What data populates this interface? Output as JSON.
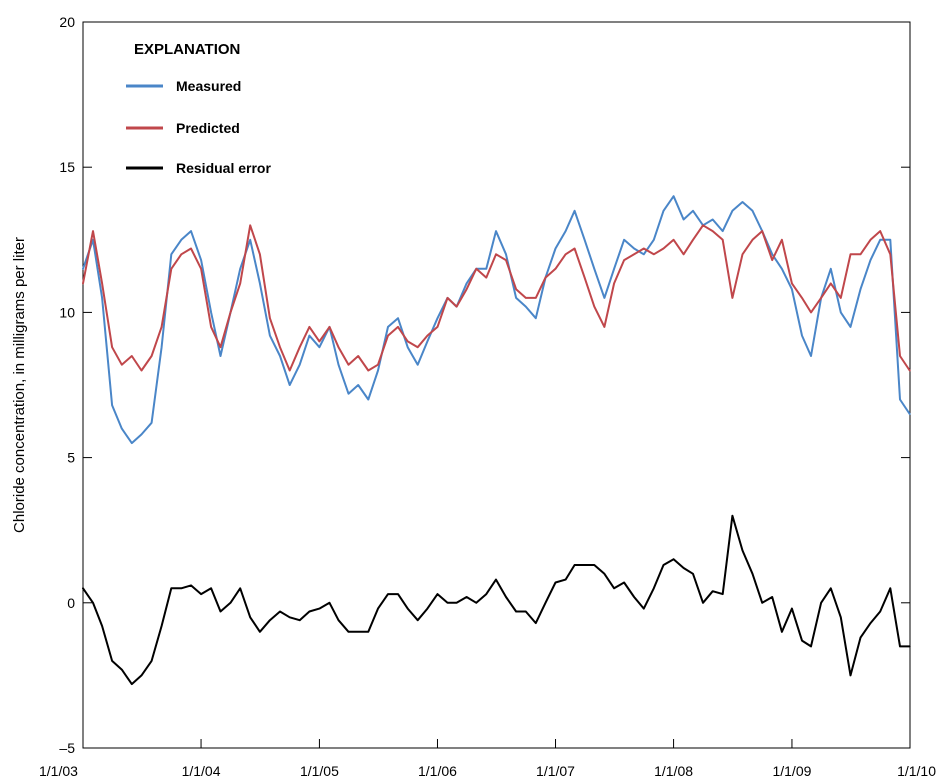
{
  "chart_data": {
    "type": "line",
    "ylabel": "Chloride concentration, in milligrams per liter",
    "ylim": [
      -5,
      20
    ],
    "yticks": [
      -5,
      0,
      5,
      10,
      15,
      20
    ],
    "ytick_labels": [
      "–5",
      "0",
      "5",
      "10",
      "15",
      "20"
    ],
    "xlim": [
      "2003-01-01",
      "2010-01-01"
    ],
    "xticks": [
      "1/1/03",
      "1/1/04",
      "1/1/05",
      "1/1/06",
      "1/1/07",
      "1/1/08",
      "1/1/09",
      "1/1/10"
    ],
    "legend": {
      "title": "EXPLANATION",
      "position": "top-left",
      "entries": [
        {
          "label": "Measured",
          "color": "#4a86c8"
        },
        {
          "label": "Predicted",
          "color": "#c0474b"
        },
        {
          "label": "Residual error",
          "color": "#000000"
        }
      ]
    },
    "series": [
      {
        "name": "Measured",
        "color": "#4a86c8",
        "x": [
          "2003-01-01",
          "2003-02-01",
          "2003-03-01",
          "2003-04-01",
          "2003-05-01",
          "2003-06-01",
          "2003-07-01",
          "2003-08-01",
          "2003-09-01",
          "2003-10-01",
          "2003-11-01",
          "2003-12-01",
          "2004-01-01",
          "2004-02-01",
          "2004-03-01",
          "2004-04-01",
          "2004-05-01",
          "2004-06-01",
          "2004-07-01",
          "2004-08-01",
          "2004-09-01",
          "2004-10-01",
          "2004-11-01",
          "2004-12-01",
          "2005-01-01",
          "2005-02-01",
          "2005-03-01",
          "2005-04-01",
          "2005-05-01",
          "2005-06-01",
          "2005-07-01",
          "2005-08-01",
          "2005-09-01",
          "2005-10-01",
          "2005-11-01",
          "2005-12-01",
          "2006-01-01",
          "2006-02-01",
          "2006-03-01",
          "2006-04-01",
          "2006-05-01",
          "2006-06-01",
          "2006-07-01",
          "2006-08-01",
          "2006-09-01",
          "2006-10-01",
          "2006-11-01",
          "2006-12-01",
          "2007-01-01",
          "2007-02-01",
          "2007-03-01",
          "2007-04-01",
          "2007-05-01",
          "2007-06-01",
          "2007-07-01",
          "2007-08-01",
          "2007-09-01",
          "2007-10-01",
          "2007-11-01",
          "2007-12-01",
          "2008-01-01",
          "2008-02-01",
          "2008-03-01",
          "2008-04-01",
          "2008-05-01",
          "2008-06-01",
          "2008-07-01",
          "2008-08-01",
          "2008-09-01",
          "2008-10-01",
          "2008-11-01",
          "2008-12-01",
          "2009-01-01",
          "2009-02-01",
          "2009-03-01",
          "2009-04-01",
          "2009-05-01",
          "2009-06-01",
          "2009-07-01",
          "2009-08-01",
          "2009-09-01",
          "2009-10-01",
          "2009-11-01",
          "2009-12-01",
          "2009-12-31"
        ],
        "y": [
          11.5,
          12.5,
          10.5,
          6.8,
          6.0,
          5.5,
          5.8,
          6.2,
          8.8,
          12.0,
          12.5,
          12.8,
          11.8,
          10.0,
          8.5,
          10.0,
          11.5,
          12.5,
          11.0,
          9.2,
          8.5,
          7.5,
          8.2,
          9.2,
          8.8,
          9.5,
          8.2,
          7.2,
          7.5,
          7.0,
          8.0,
          9.5,
          9.8,
          8.8,
          8.2,
          9.0,
          9.8,
          10.5,
          10.2,
          11.0,
          11.5,
          11.5,
          12.8,
          12.0,
          10.5,
          10.2,
          9.8,
          11.2,
          12.2,
          12.8,
          13.5,
          12.5,
          11.5,
          10.5,
          11.5,
          12.5,
          12.2,
          12.0,
          12.5,
          13.5,
          14.0,
          13.2,
          13.5,
          13.0,
          13.2,
          12.8,
          13.5,
          13.8,
          13.5,
          12.8,
          12.0,
          11.5,
          10.8,
          9.2,
          8.5,
          10.5,
          11.5,
          10.0,
          9.5,
          10.8,
          11.8,
          12.5,
          12.5,
          7.0,
          6.5
        ]
      },
      {
        "name": "Predicted",
        "color": "#c0474b",
        "x": [
          "2003-01-01",
          "2003-02-01",
          "2003-03-01",
          "2003-04-01",
          "2003-05-01",
          "2003-06-01",
          "2003-07-01",
          "2003-08-01",
          "2003-09-01",
          "2003-10-01",
          "2003-11-01",
          "2003-12-01",
          "2004-01-01",
          "2004-02-01",
          "2004-03-01",
          "2004-04-01",
          "2004-05-01",
          "2004-06-01",
          "2004-07-01",
          "2004-08-01",
          "2004-09-01",
          "2004-10-01",
          "2004-11-01",
          "2004-12-01",
          "2005-01-01",
          "2005-02-01",
          "2005-03-01",
          "2005-04-01",
          "2005-05-01",
          "2005-06-01",
          "2005-07-01",
          "2005-08-01",
          "2005-09-01",
          "2005-10-01",
          "2005-11-01",
          "2005-12-01",
          "2006-01-01",
          "2006-02-01",
          "2006-03-01",
          "2006-04-01",
          "2006-05-01",
          "2006-06-01",
          "2006-07-01",
          "2006-08-01",
          "2006-09-01",
          "2006-10-01",
          "2006-11-01",
          "2006-12-01",
          "2007-01-01",
          "2007-02-01",
          "2007-03-01",
          "2007-04-01",
          "2007-05-01",
          "2007-06-01",
          "2007-07-01",
          "2007-08-01",
          "2007-09-01",
          "2007-10-01",
          "2007-11-01",
          "2007-12-01",
          "2008-01-01",
          "2008-02-01",
          "2008-03-01",
          "2008-04-01",
          "2008-05-01",
          "2008-06-01",
          "2008-07-01",
          "2008-08-01",
          "2008-09-01",
          "2008-10-01",
          "2008-11-01",
          "2008-12-01",
          "2009-01-01",
          "2009-02-01",
          "2009-03-01",
          "2009-04-01",
          "2009-05-01",
          "2009-06-01",
          "2009-07-01",
          "2009-08-01",
          "2009-09-01",
          "2009-10-01",
          "2009-11-01",
          "2009-12-01",
          "2009-12-31"
        ],
        "y": [
          11.0,
          12.8,
          11.0,
          8.8,
          8.2,
          8.5,
          8.0,
          8.5,
          9.5,
          11.5,
          12.0,
          12.2,
          11.5,
          9.5,
          8.8,
          10.0,
          11.0,
          13.0,
          12.0,
          9.8,
          8.8,
          8.0,
          8.8,
          9.5,
          9.0,
          9.5,
          8.8,
          8.2,
          8.5,
          8.0,
          8.2,
          9.2,
          9.5,
          9.0,
          8.8,
          9.2,
          9.5,
          10.5,
          10.2,
          10.8,
          11.5,
          11.2,
          12.0,
          11.8,
          10.8,
          10.5,
          10.5,
          11.2,
          11.5,
          12.0,
          12.2,
          11.2,
          10.2,
          9.5,
          11.0,
          11.8,
          12.0,
          12.2,
          12.0,
          12.2,
          12.5,
          12.0,
          12.5,
          13.0,
          12.8,
          12.5,
          10.5,
          12.0,
          12.5,
          12.8,
          11.8,
          12.5,
          11.0,
          10.5,
          10.0,
          10.5,
          11.0,
          10.5,
          12.0,
          12.0,
          12.5,
          12.8,
          12.0,
          8.5,
          8.0
        ]
      },
      {
        "name": "Residual error",
        "color": "#000000",
        "x": [
          "2003-01-01",
          "2003-02-01",
          "2003-03-01",
          "2003-04-01",
          "2003-05-01",
          "2003-06-01",
          "2003-07-01",
          "2003-08-01",
          "2003-09-01",
          "2003-10-01",
          "2003-11-01",
          "2003-12-01",
          "2004-01-01",
          "2004-02-01",
          "2004-03-01",
          "2004-04-01",
          "2004-05-01",
          "2004-06-01",
          "2004-07-01",
          "2004-08-01",
          "2004-09-01",
          "2004-10-01",
          "2004-11-01",
          "2004-12-01",
          "2005-01-01",
          "2005-02-01",
          "2005-03-01",
          "2005-04-01",
          "2005-05-01",
          "2005-06-01",
          "2005-07-01",
          "2005-08-01",
          "2005-09-01",
          "2005-10-01",
          "2005-11-01",
          "2005-12-01",
          "2006-01-01",
          "2006-02-01",
          "2006-03-01",
          "2006-04-01",
          "2006-05-01",
          "2006-06-01",
          "2006-07-01",
          "2006-08-01",
          "2006-09-01",
          "2006-10-01",
          "2006-11-01",
          "2006-12-01",
          "2007-01-01",
          "2007-02-01",
          "2007-03-01",
          "2007-04-01",
          "2007-05-01",
          "2007-06-01",
          "2007-07-01",
          "2007-08-01",
          "2007-09-01",
          "2007-10-01",
          "2007-11-01",
          "2007-12-01",
          "2008-01-01",
          "2008-02-01",
          "2008-03-01",
          "2008-04-01",
          "2008-05-01",
          "2008-06-01",
          "2008-07-01",
          "2008-08-01",
          "2008-09-01",
          "2008-10-01",
          "2008-11-01",
          "2008-12-01",
          "2009-01-01",
          "2009-02-01",
          "2009-03-01",
          "2009-04-01",
          "2009-05-01",
          "2009-06-01",
          "2009-07-01",
          "2009-08-01",
          "2009-09-01",
          "2009-10-01",
          "2009-11-01",
          "2009-12-01",
          "2009-12-31"
        ],
        "y": [
          0.5,
          0.0,
          -0.8,
          -2.0,
          -2.3,
          -2.8,
          -2.5,
          -2.0,
          -0.8,
          0.5,
          0.5,
          0.6,
          0.3,
          0.5,
          -0.3,
          0.0,
          0.5,
          -0.5,
          -1.0,
          -0.6,
          -0.3,
          -0.5,
          -0.6,
          -0.3,
          -0.2,
          0.0,
          -0.6,
          -1.0,
          -1.0,
          -1.0,
          -0.2,
          0.3,
          0.3,
          -0.2,
          -0.6,
          -0.2,
          0.3,
          0.0,
          0.0,
          0.2,
          0.0,
          0.3,
          0.8,
          0.2,
          -0.3,
          -0.3,
          -0.7,
          0.0,
          0.7,
          0.8,
          1.3,
          1.3,
          1.3,
          1.0,
          0.5,
          0.7,
          0.2,
          -0.2,
          0.5,
          1.3,
          1.5,
          1.2,
          1.0,
          0.0,
          0.4,
          0.3,
          3.0,
          1.8,
          1.0,
          0.0,
          0.2,
          -1.0,
          -0.2,
          -1.3,
          -1.5,
          0.0,
          0.5,
          -0.5,
          -2.5,
          -1.2,
          -0.7,
          -0.3,
          0.5,
          -1.5,
          -1.5
        ]
      }
    ]
  }
}
